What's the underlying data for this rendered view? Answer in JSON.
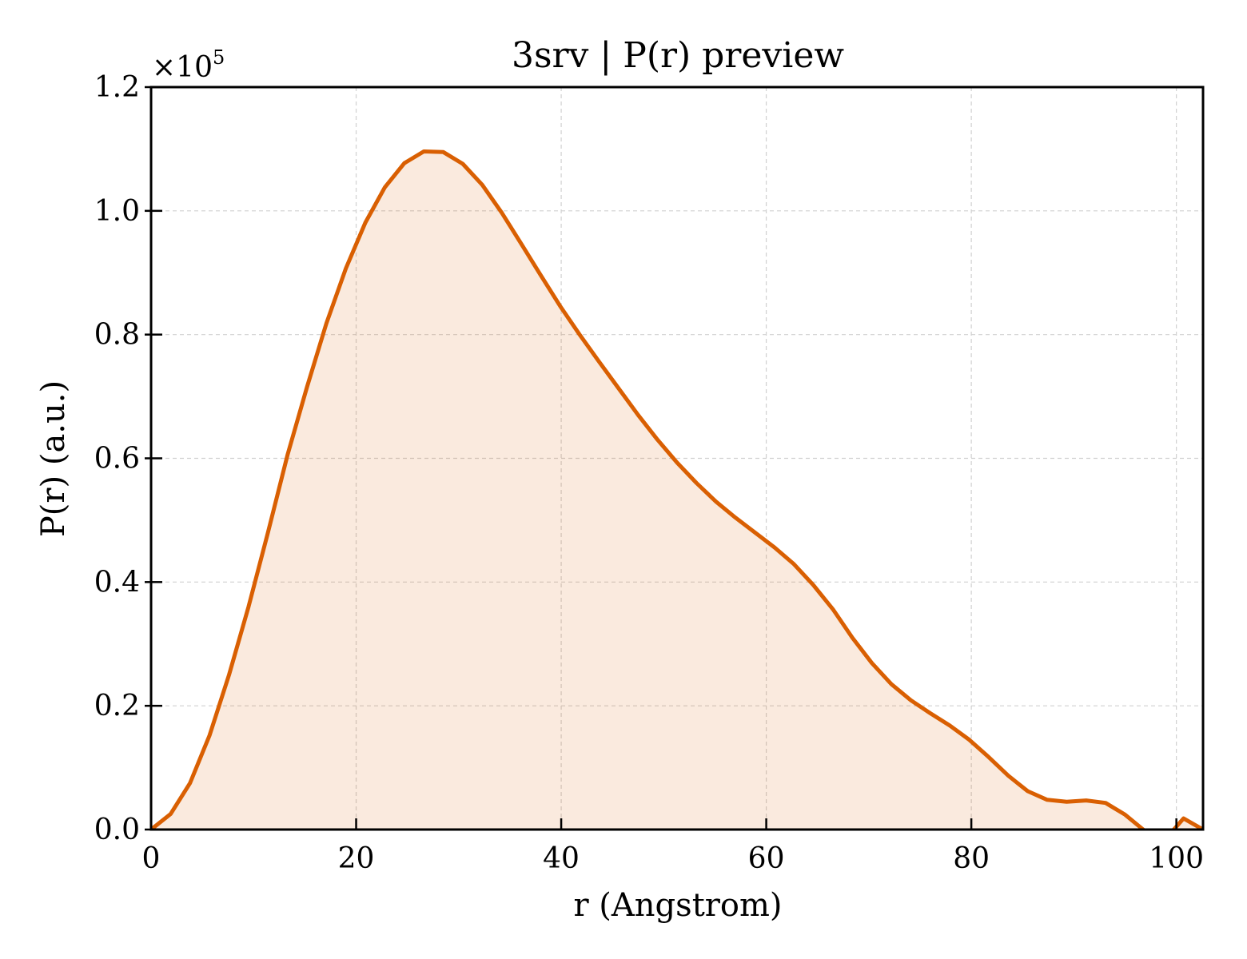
{
  "chart_data": {
    "type": "area",
    "title": "3srv | P(r) preview",
    "xlabel": "r (Angstrom)",
    "ylabel": "P(r) (a.u.)",
    "y_multiplier_base": "×10",
    "y_multiplier_exp": "5",
    "xlim": [
      0,
      102.6
    ],
    "ylim": [
      0,
      1.2
    ],
    "xticks": [
      0,
      20,
      40,
      60,
      80,
      100
    ],
    "xtick_labels": [
      "0",
      "20",
      "40",
      "60",
      "80",
      "100"
    ],
    "yticks": [
      0,
      0.2,
      0.4,
      0.6,
      0.8,
      1.0,
      1.2
    ],
    "ytick_labels": [
      "0.0",
      "0.2",
      "0.4",
      "0.6",
      "0.8",
      "1.0",
      "1.2"
    ],
    "grid": true,
    "legend": "none",
    "colors": {
      "line": "#d95f02",
      "fill": "#d95f02",
      "fill_opacity": 0.13
    },
    "series": [
      {
        "x": [
          0,
          1.9,
          3.8,
          5.7,
          7.6,
          9.5,
          11.4,
          13.3,
          15.2,
          17.1,
          19.0,
          20.9,
          22.8,
          24.7,
          26.6,
          28.5,
          30.4,
          32.3,
          34.2,
          36.1,
          38.0,
          39.9,
          41.8,
          43.7,
          45.6,
          47.5,
          49.4,
          51.3,
          53.2,
          55.1,
          57.0,
          58.9,
          60.8,
          62.7,
          64.6,
          66.5,
          68.4,
          70.3,
          72.2,
          74.1,
          76.0,
          77.9,
          79.8,
          81.7,
          83.6,
          85.5,
          87.4,
          89.3,
          91.2,
          93.1,
          95.0,
          96.9,
          98.8,
          100.7,
          102.6
        ],
        "values": [
          0,
          0.025,
          0.075,
          0.152,
          0.25,
          0.36,
          0.48,
          0.605,
          0.715,
          0.818,
          0.907,
          0.981,
          1.038,
          1.077,
          1.096,
          1.095,
          1.076,
          1.042,
          0.997,
          0.947,
          0.896,
          0.846,
          0.8,
          0.756,
          0.713,
          0.67,
          0.63,
          0.593,
          0.56,
          0.53,
          0.504,
          0.48,
          0.456,
          0.429,
          0.395,
          0.356,
          0.31,
          0.269,
          0.235,
          0.209,
          0.188,
          0.168,
          0.145,
          0.117,
          0.087,
          0.062,
          0.048,
          0.045,
          0.047,
          0.043,
          0.024,
          -0.002,
          -0.018,
          0.018,
          0.0
        ]
      }
    ]
  }
}
